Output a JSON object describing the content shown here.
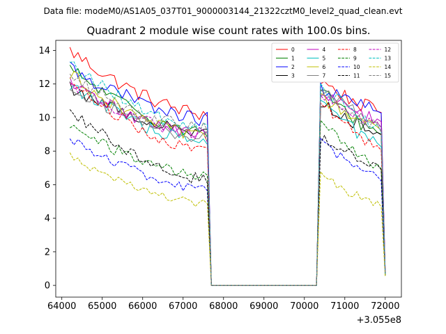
{
  "chart_data": {
    "type": "line",
    "supertitle": "Data file: modeM0/AS1A05_037T01_9000003144_21322cztM0_level2_quad_clean.evt",
    "title": "Quadrant 2 module wise count rates with 100.0s bins.",
    "x_offset_label": "+3.055e8",
    "xlabel": "",
    "ylabel": "",
    "xlim": [
      63850,
      72400
    ],
    "ylim": [
      -0.7,
      14.6
    ],
    "x_ticks": [
      64000,
      65000,
      66000,
      67000,
      68000,
      69000,
      70000,
      71000,
      72000
    ],
    "x_tick_labels": [
      "64000",
      "65000",
      "66000",
      "67000",
      "68000",
      "69000",
      "70000",
      "71000",
      "72000"
    ],
    "y_ticks": [
      0,
      2,
      4,
      6,
      8,
      10,
      12,
      14
    ],
    "y_tick_labels": [
      "0",
      "2",
      "4",
      "6",
      "8",
      "10",
      "12",
      "14"
    ],
    "grid": false,
    "legend_position": "upper right",
    "legend_columns": 4,
    "segments": [
      {
        "x_start": 64200,
        "x_end": 67600,
        "step": 100
      },
      {
        "x_start": 70400,
        "x_end": 72000,
        "step": 100
      }
    ],
    "gap": {
      "x_start": 67700,
      "x_end": 70300,
      "value": 0
    },
    "series": [
      {
        "name": "0",
        "color": "#ff0000",
        "dash": "solid",
        "start1": 14.0,
        "end1": 10.2,
        "start2": 12.2,
        "end2": 10.3,
        "final": 0.8,
        "jitter": 0.45
      },
      {
        "name": "1",
        "color": "#008000",
        "dash": "solid",
        "start1": 12.9,
        "end1": 9.1,
        "start2": 11.6,
        "end2": 9.0,
        "final": 0.7,
        "jitter": 0.4
      },
      {
        "name": "2",
        "color": "#0000ff",
        "dash": "solid",
        "start1": 13.0,
        "end1": 9.9,
        "start2": 11.8,
        "end2": 10.3,
        "final": 0.8,
        "jitter": 0.45
      },
      {
        "name": "3",
        "color": "#000000",
        "dash": "solid",
        "start1": 11.8,
        "end1": 9.1,
        "start2": 11.0,
        "end2": 9.0,
        "final": 0.7,
        "jitter": 0.4
      },
      {
        "name": "4",
        "color": "#bf00bf",
        "dash": "solid",
        "start1": 12.0,
        "end1": 9.0,
        "start2": 11.5,
        "end2": 9.8,
        "final": 0.8,
        "jitter": 0.4
      },
      {
        "name": "5",
        "color": "#00bfbf",
        "dash": "solid",
        "start1": 12.0,
        "end1": 8.5,
        "start2": 11.0,
        "end2": 8.3,
        "final": 0.7,
        "jitter": 0.4
      },
      {
        "name": "6",
        "color": "#bfbf00",
        "dash": "solid",
        "start1": 12.6,
        "end1": 8.8,
        "start2": 11.2,
        "end2": 9.3,
        "final": 0.7,
        "jitter": 0.4
      },
      {
        "name": "7",
        "color": "#808080",
        "dash": "solid",
        "start1": 11.9,
        "end1": 8.8,
        "start2": 12.0,
        "end2": 9.5,
        "final": 0.7,
        "jitter": 0.4
      },
      {
        "name": "8",
        "color": "#ff0000",
        "dash": "dashed",
        "start1": 12.2,
        "end1": 8.0,
        "start2": 11.0,
        "end2": 8.1,
        "final": 0.7,
        "jitter": 0.35
      },
      {
        "name": "9",
        "color": "#008000",
        "dash": "dashed",
        "start1": 9.5,
        "end1": 6.5,
        "start2": 9.8,
        "end2": 7.0,
        "final": 0.6,
        "jitter": 0.35
      },
      {
        "name": "10",
        "color": "#0000ff",
        "dash": "dashed",
        "start1": 8.8,
        "end1": 5.7,
        "start2": 8.6,
        "end2": 6.3,
        "final": 0.6,
        "jitter": 0.3
      },
      {
        "name": "11",
        "color": "#000000",
        "dash": "dashed",
        "start1": 10.5,
        "end1": 6.3,
        "start2": 8.8,
        "end2": 7.0,
        "final": 0.6,
        "jitter": 0.35
      },
      {
        "name": "12",
        "color": "#bf00bf",
        "dash": "dashed",
        "start1": 12.0,
        "end1": 8.9,
        "start2": 11.5,
        "end2": 9.5,
        "final": 0.8,
        "jitter": 0.4
      },
      {
        "name": "13",
        "color": "#00bfbf",
        "dash": "dashed",
        "start1": 13.2,
        "end1": 9.3,
        "start2": 12.0,
        "end2": 9.3,
        "final": 0.7,
        "jitter": 0.4
      },
      {
        "name": "14",
        "color": "#bfbf00",
        "dash": "dashed",
        "start1": 7.8,
        "end1": 4.8,
        "start2": 6.6,
        "end2": 4.8,
        "final": 0.5,
        "jitter": 0.3
      },
      {
        "name": "15",
        "color": "#808080",
        "dash": "dashed",
        "start1": 12.4,
        "end1": 9.3,
        "start2": 11.6,
        "end2": 9.3,
        "final": 0.7,
        "jitter": 0.4
      }
    ]
  }
}
